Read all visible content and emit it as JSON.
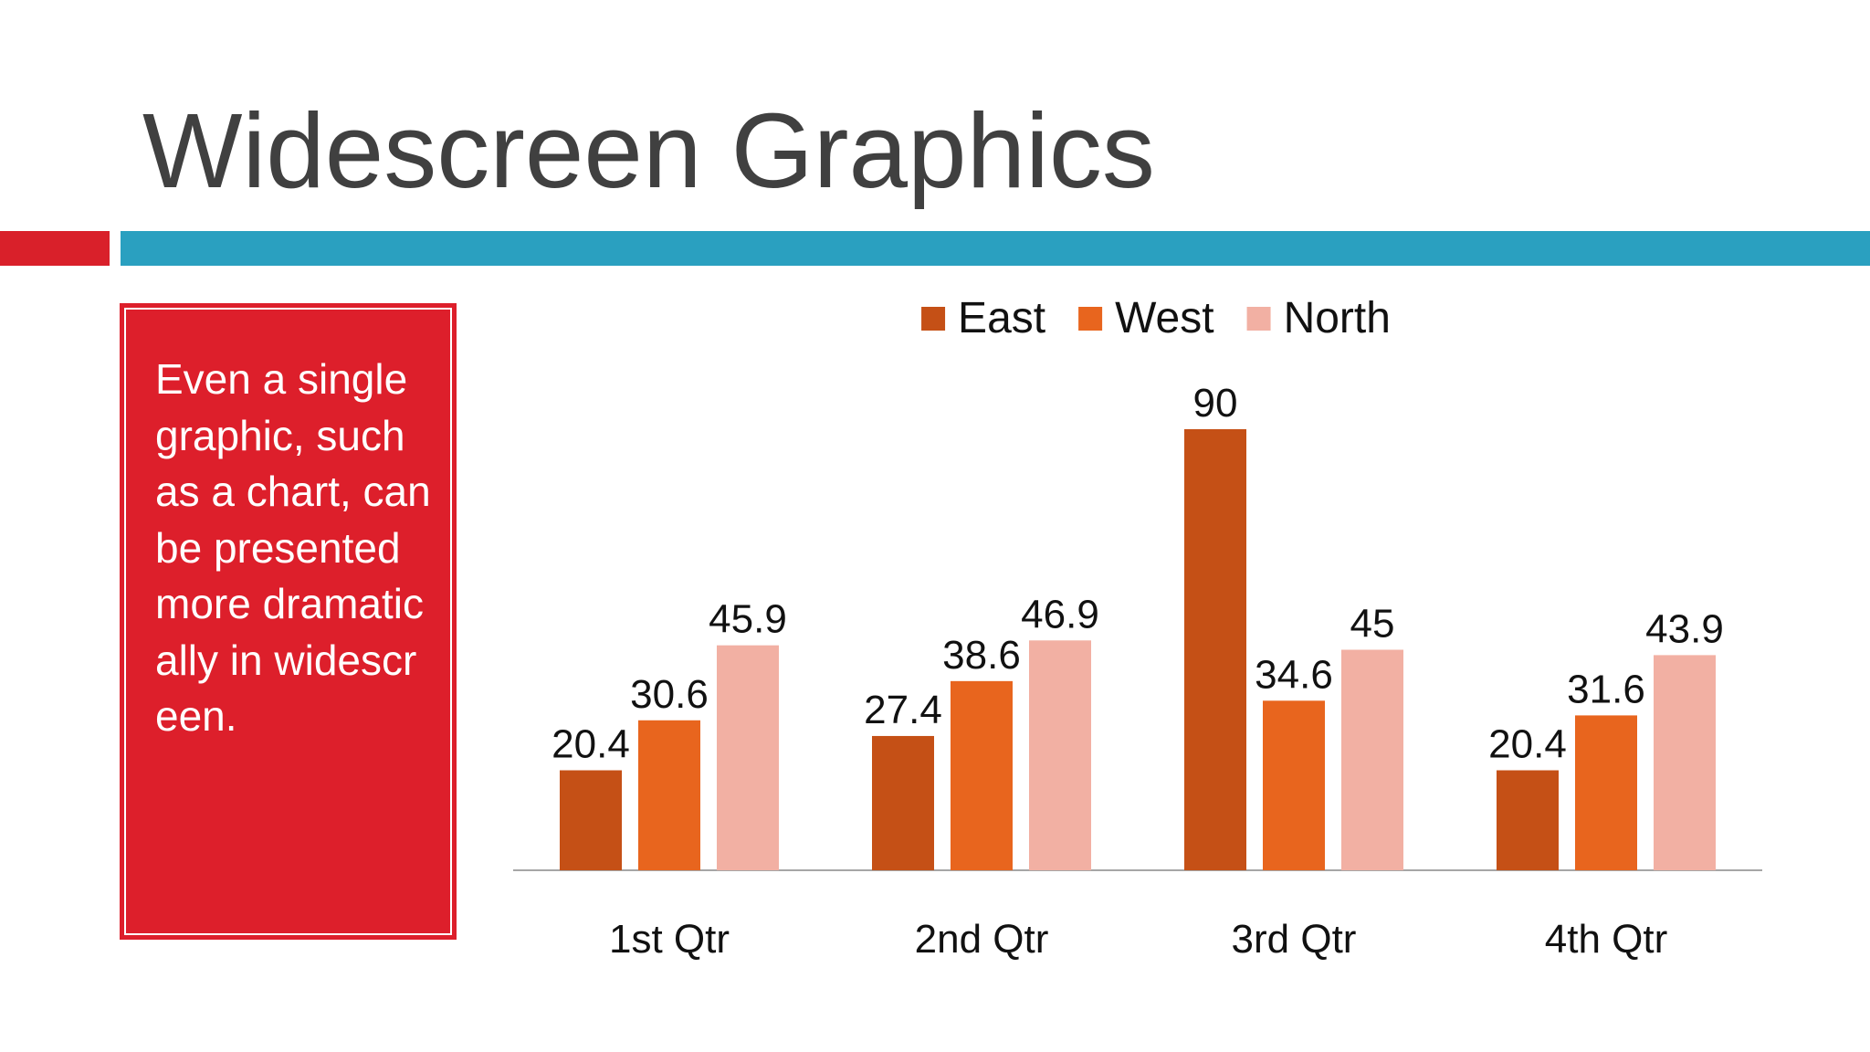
{
  "slide": {
    "title": "Widescreen Graphics",
    "text": "Even a single graphic, such as a chart, can be presented more dramatically in widescreen."
  },
  "chart_data": {
    "type": "bar",
    "categories": [
      "1st Qtr",
      "2nd Qtr",
      "3rd Qtr",
      "4th Qtr"
    ],
    "series": [
      {
        "name": "East",
        "color": "#c55016",
        "values": [
          20.4,
          27.4,
          90,
          20.4
        ]
      },
      {
        "name": "West",
        "color": "#e8651e",
        "values": [
          30.6,
          38.6,
          34.6,
          31.6
        ]
      },
      {
        "name": "North",
        "color": "#f2b0a3",
        "values": [
          45.9,
          46.9,
          45,
          43.9
        ]
      }
    ],
    "legend": "top"
  }
}
